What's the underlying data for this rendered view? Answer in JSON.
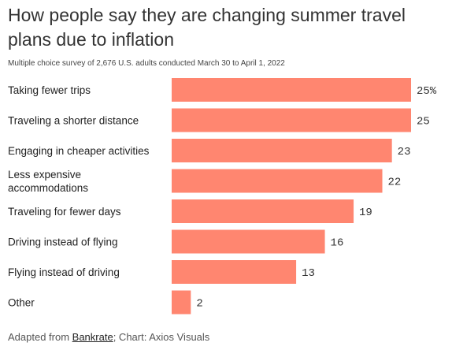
{
  "chart_data": {
    "type": "bar",
    "title": "How people say they are changing summer travel plans due to inflation",
    "subtitle": "Multiple choice survey of 2,676 U.S. adults conducted March 30 to April 1, 2022",
    "categories": [
      [
        "Taking fewer trips"
      ],
      [
        "Traveling a shorter distance"
      ],
      [
        "Engaging in cheaper activities"
      ],
      [
        "Less expensive",
        "accommodations"
      ],
      [
        "Traveling for fewer days"
      ],
      [
        "Driving instead of flying"
      ],
      [
        "Flying instead of driving"
      ],
      [
        "Other"
      ]
    ],
    "values": [
      25,
      25,
      23,
      22,
      19,
      16,
      13,
      2
    ],
    "value_labels": [
      "25%",
      "25",
      "23",
      "22",
      "19",
      "16",
      "13",
      "2"
    ],
    "xlim": [
      0,
      25
    ],
    "orientation": "horizontal",
    "bar_color": "#ff8670",
    "grid": false,
    "legend": "none"
  },
  "footer": {
    "prefix": "Adapted from ",
    "source": "Bankrate",
    "suffix": "; Chart: Axios Visuals"
  }
}
